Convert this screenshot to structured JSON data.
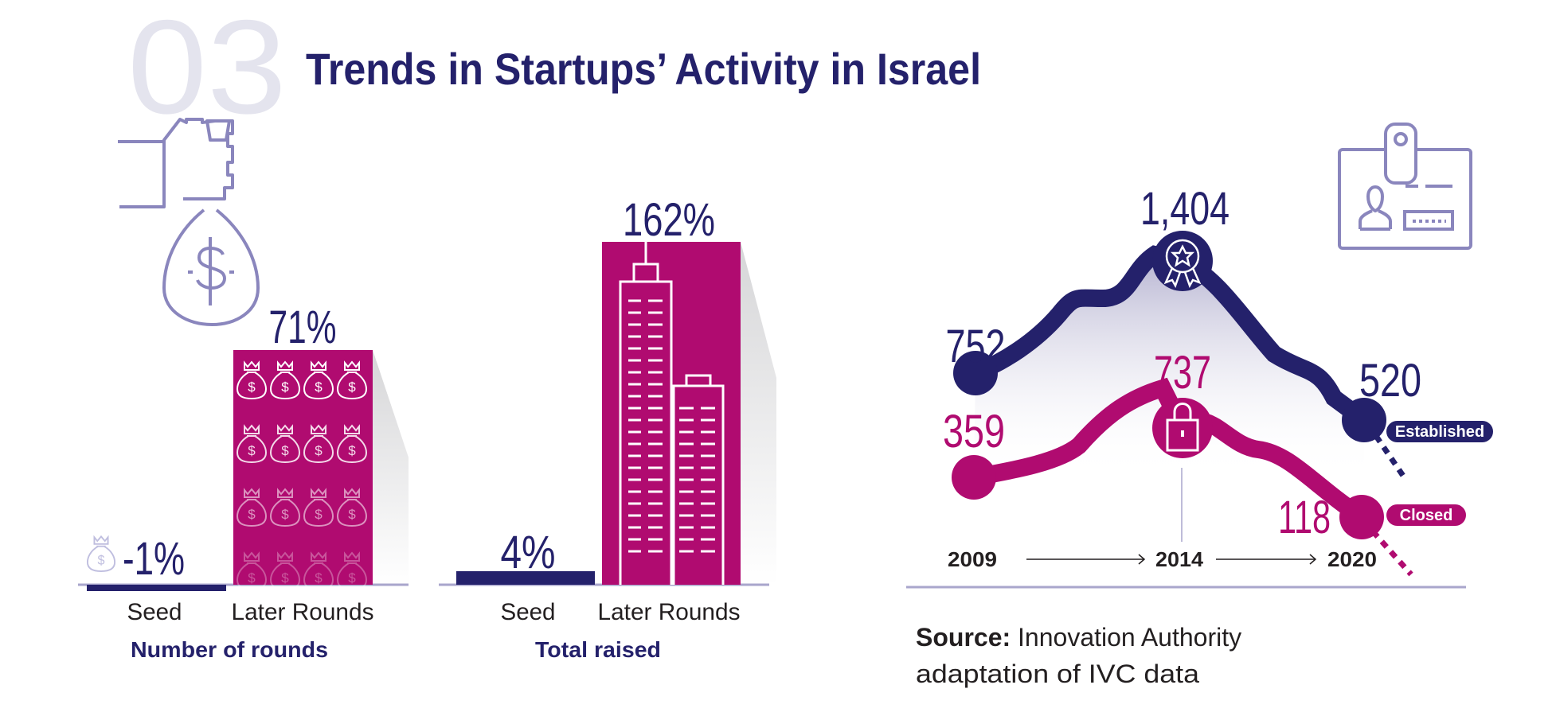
{
  "header": {
    "section_number": "03",
    "title": "Trends in Startups’ Activity in Israel"
  },
  "colors": {
    "navy": "#24216b",
    "magenta": "#b00b70",
    "lavender": "#8a86bd",
    "faint": "#e4e4ee",
    "axis": "#a9a6cc"
  },
  "icons": [
    "money-bag-in-hand-icon",
    "money-bag-icon",
    "skyscraper-icon",
    "id-badge-icon",
    "award-ribbon-icon",
    "padlock-icon"
  ],
  "chart_data": [
    {
      "type": "bar",
      "title": "Number of rounds",
      "categories": [
        "Seed",
        "Later Rounds"
      ],
      "values": [
        -1,
        71
      ],
      "value_labels": [
        "-1%",
        "71%"
      ],
      "colors": [
        "#24216b",
        "#b00b70"
      ]
    },
    {
      "type": "bar",
      "title": "Total raised",
      "categories": [
        "Seed",
        "Later Rounds"
      ],
      "values": [
        4,
        162
      ],
      "value_labels": [
        "4%",
        "162%"
      ],
      "colors": [
        "#24216b",
        "#b00b70"
      ]
    },
    {
      "type": "line",
      "x": [
        "2009",
        "2014",
        "2020"
      ],
      "series": [
        {
          "name": "Established",
          "values": [
            752,
            1404,
            520
          ],
          "labels": [
            "752",
            "1,404",
            "520"
          ],
          "color": "#24216b"
        },
        {
          "name": "Closed",
          "values": [
            359,
            737,
            118
          ],
          "labels": [
            "359",
            "737",
            "118"
          ],
          "color": "#b00b70"
        }
      ]
    }
  ],
  "source": {
    "label": "Source:",
    "line1": " Innovation Authority",
    "line2": "adaptation of IVC data"
  }
}
